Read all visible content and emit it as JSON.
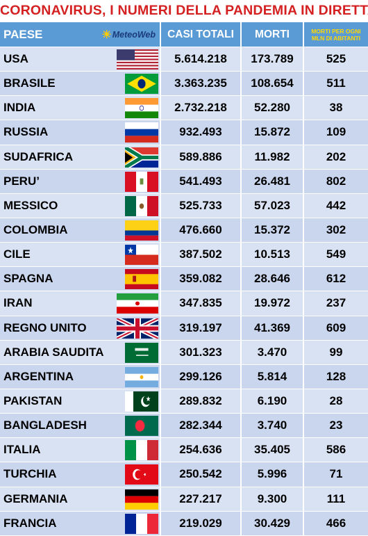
{
  "title": "CORONAVIRUS, I NUMERI DELLA PANDEMIA IN DIRETTA",
  "header": {
    "country": "PAESE",
    "logo": "MeteoWeb",
    "total": "CASI TOTALI",
    "deaths": "MORTI",
    "per_mln_line1": "MORTI PER OGNI",
    "per_mln_line2": "MLN DI ABITANTI"
  },
  "colors": {
    "title": "#d42020",
    "header_bg": "#5b9bd5",
    "row_bg": "#d9e2f3",
    "per_mln_header": "#ffd700"
  },
  "rows": [
    {
      "country": "USA",
      "flag": "usa-flag-icon",
      "total": "5.614.218",
      "deaths": "173.789",
      "per_mln": "525"
    },
    {
      "country": "BRASILE",
      "flag": "brazil-flag-icon",
      "total": "3.363.235",
      "deaths": "108.654",
      "per_mln": "511"
    },
    {
      "country": "INDIA",
      "flag": "india-flag-icon",
      "total": "2.732.218",
      "deaths": "52.280",
      "per_mln": "38"
    },
    {
      "country": "RUSSIA",
      "flag": "russia-flag-icon",
      "total": "932.493",
      "deaths": "15.872",
      "per_mln": "109"
    },
    {
      "country": "SUDAFRICA",
      "flag": "south-africa-flag-icon",
      "total": "589.886",
      "deaths": "11.982",
      "per_mln": "202"
    },
    {
      "country": "PERU’",
      "flag": "peru-flag-icon",
      "total": "541.493",
      "deaths": "26.481",
      "per_mln": "802"
    },
    {
      "country": "MESSICO",
      "flag": "mexico-flag-icon",
      "total": "525.733",
      "deaths": "57.023",
      "per_mln": "442"
    },
    {
      "country": "COLOMBIA",
      "flag": "colombia-flag-icon",
      "total": "476.660",
      "deaths": "15.372",
      "per_mln": "302"
    },
    {
      "country": "CILE",
      "flag": "chile-flag-icon",
      "total": "387.502",
      "deaths": "10.513",
      "per_mln": "549"
    },
    {
      "country": "SPAGNA",
      "flag": "spain-flag-icon",
      "total": "359.082",
      "deaths": "28.646",
      "per_mln": "612"
    },
    {
      "country": "IRAN",
      "flag": "iran-flag-icon",
      "total": "347.835",
      "deaths": "19.972",
      "per_mln": "237"
    },
    {
      "country": "REGNO UNITO",
      "flag": "uk-flag-icon",
      "total": "319.197",
      "deaths": "41.369",
      "per_mln": "609"
    },
    {
      "country": "ARABIA SAUDITA",
      "flag": "saudi-arabia-flag-icon",
      "total": "301.323",
      "deaths": "3.470",
      "per_mln": "99"
    },
    {
      "country": "ARGENTINA",
      "flag": "argentina-flag-icon",
      "total": "299.126",
      "deaths": "5.814",
      "per_mln": "128"
    },
    {
      "country": "PAKISTAN",
      "flag": "pakistan-flag-icon",
      "total": "289.832",
      "deaths": "6.190",
      "per_mln": "28"
    },
    {
      "country": "BANGLADESH",
      "flag": "bangladesh-flag-icon",
      "total": "282.344",
      "deaths": "3.740",
      "per_mln": "23"
    },
    {
      "country": "ITALIA",
      "flag": "italy-flag-icon",
      "total": "254.636",
      "deaths": "35.405",
      "per_mln": "586"
    },
    {
      "country": "TURCHIA",
      "flag": "turkey-flag-icon",
      "total": "250.542",
      "deaths": "5.996",
      "per_mln": "71"
    },
    {
      "country": "GERMANIA",
      "flag": "germany-flag-icon",
      "total": "227.217",
      "deaths": "9.300",
      "per_mln": "111"
    },
    {
      "country": "FRANCIA",
      "flag": "france-flag-icon",
      "total": "219.029",
      "deaths": "30.429",
      "per_mln": "466"
    }
  ]
}
